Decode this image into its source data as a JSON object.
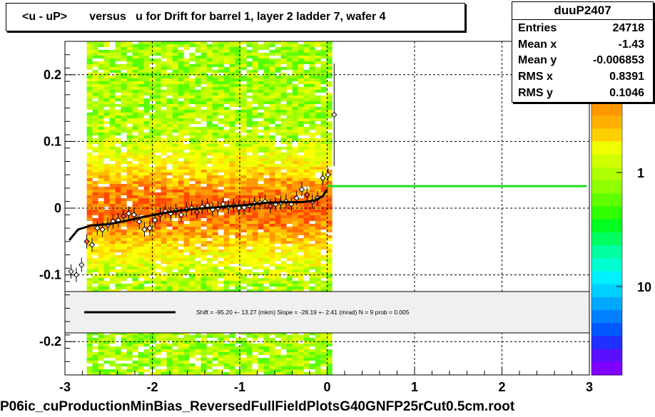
{
  "title": "<u - uP>       versus   u for Drift for barrel 1, layer 2 ladder 7, wafer 4",
  "stats": {
    "name": "duuP2407",
    "rows": [
      {
        "label": "Entries",
        "value": "24718"
      },
      {
        "label": "Mean x",
        "value": "-1.43"
      },
      {
        "label": "Mean y",
        "value": "-0.006853"
      },
      {
        "label": "RMS x",
        "value": "0.8391"
      },
      {
        "label": "RMS y",
        "value": "0.1046"
      }
    ]
  },
  "fit_text": "Shift =   -95.20 +- 13.27 (mkm) Slope =   -28.19 +- 2.41 (mrad)  N = 9 prob = 0.005",
  "footer": "P06ic_cuProductionMinBias_ReversedFullFieldPlotsG40GNFP25rCut0.5cm.root",
  "chart_data": {
    "type": "heatmap",
    "xlim": [
      -3,
      3
    ],
    "ylim": [
      -0.25,
      0.25
    ],
    "x_ticks": [
      "-3",
      "-2",
      "-1",
      "0",
      "1",
      "2",
      "3"
    ],
    "y_ticks": [
      "-0.2",
      "-0.1",
      "0",
      "0.1",
      "0.2"
    ],
    "colorbar_ticks": [
      "1",
      "10"
    ],
    "grid": true,
    "heatmap_x_range": [
      -2.75,
      0.0
    ],
    "profile_points": [
      {
        "x": -2.93,
        "y": -0.095
      },
      {
        "x": -2.87,
        "y": -0.1
      },
      {
        "x": -2.81,
        "y": -0.085
      },
      {
        "x": -2.75,
        "y": -0.05
      },
      {
        "x": -2.69,
        "y": -0.055
      },
      {
        "x": -2.63,
        "y": -0.03
      },
      {
        "x": -2.57,
        "y": -0.032
      },
      {
        "x": -2.51,
        "y": -0.025
      },
      {
        "x": -2.45,
        "y": -0.02
      },
      {
        "x": -2.39,
        "y": -0.018
      },
      {
        "x": -2.33,
        "y": -0.012
      },
      {
        "x": -2.27,
        "y": -0.008
      },
      {
        "x": -2.21,
        "y": -0.01
      },
      {
        "x": -2.15,
        "y": -0.02
      },
      {
        "x": -2.09,
        "y": -0.032
      },
      {
        "x": -2.03,
        "y": -0.03
      },
      {
        "x": -1.97,
        "y": -0.018
      },
      {
        "x": -1.91,
        "y": -0.01
      },
      {
        "x": -1.85,
        "y": -0.005
      },
      {
        "x": -1.79,
        "y": -0.008
      },
      {
        "x": -1.73,
        "y": -0.004
      },
      {
        "x": -1.67,
        "y": -0.01
      },
      {
        "x": -1.61,
        "y": -0.002
      },
      {
        "x": -1.55,
        "y": 0.0
      },
      {
        "x": -1.49,
        "y": -0.006
      },
      {
        "x": -1.43,
        "y": 0.002
      },
      {
        "x": -1.37,
        "y": 0.004
      },
      {
        "x": -1.31,
        "y": -0.002
      },
      {
        "x": -1.25,
        "y": 0.0
      },
      {
        "x": -1.19,
        "y": 0.006
      },
      {
        "x": -1.13,
        "y": 0.002
      },
      {
        "x": -1.07,
        "y": 0.004
      },
      {
        "x": -1.01,
        "y": 0.0
      },
      {
        "x": -0.95,
        "y": 0.001
      },
      {
        "x": -0.89,
        "y": 0.004
      },
      {
        "x": -0.83,
        "y": 0.007
      },
      {
        "x": -0.77,
        "y": 0.008
      },
      {
        "x": -0.71,
        "y": 0.01
      },
      {
        "x": -0.65,
        "y": 0.003
      },
      {
        "x": -0.59,
        "y": 0.006
      },
      {
        "x": -0.53,
        "y": 0.008
      },
      {
        "x": -0.47,
        "y": 0.01
      },
      {
        "x": -0.41,
        "y": 0.006
      },
      {
        "x": -0.35,
        "y": 0.015
      },
      {
        "x": -0.29,
        "y": 0.028
      },
      {
        "x": -0.23,
        "y": 0.02
      },
      {
        "x": -0.17,
        "y": 0.01
      },
      {
        "x": -0.11,
        "y": 0.015
      },
      {
        "x": -0.05,
        "y": 0.045
      },
      {
        "x": 0.01,
        "y": 0.05
      },
      {
        "x": 0.08,
        "y": 0.14
      }
    ],
    "fit_curve": [
      {
        "x": -2.95,
        "y": -0.048
      },
      {
        "x": -2.85,
        "y": -0.032
      },
      {
        "x": -2.7,
        "y": -0.026
      },
      {
        "x": -2.5,
        "y": -0.024
      },
      {
        "x": -2.3,
        "y": -0.019
      },
      {
        "x": -2.1,
        "y": -0.013
      },
      {
        "x": -1.9,
        "y": -0.008
      },
      {
        "x": -1.7,
        "y": -0.004
      },
      {
        "x": -1.5,
        "y": -0.001
      },
      {
        "x": -1.3,
        "y": 0.001
      },
      {
        "x": -1.1,
        "y": 0.003
      },
      {
        "x": -0.9,
        "y": 0.005
      },
      {
        "x": -0.7,
        "y": 0.008
      },
      {
        "x": -0.5,
        "y": 0.009
      },
      {
        "x": -0.3,
        "y": 0.009
      },
      {
        "x": -0.15,
        "y": 0.011
      },
      {
        "x": -0.05,
        "y": 0.018
      },
      {
        "x": 0.0,
        "y": 0.028
      }
    ],
    "green_line": {
      "x1": 0.0,
      "x2": 2.97,
      "y": 0.033
    }
  }
}
